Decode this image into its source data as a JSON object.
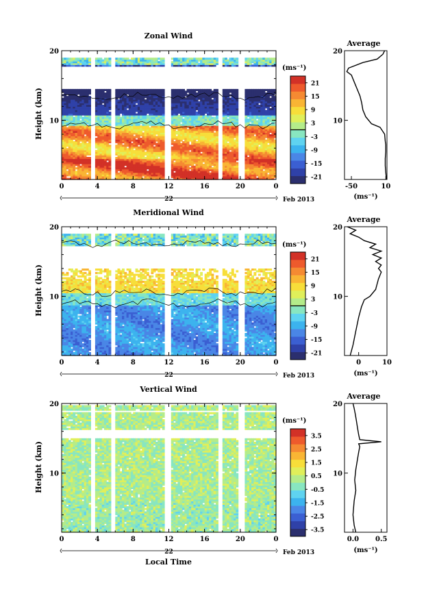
{
  "figure": {
    "date_label": "Feb 2013",
    "day_label": "22",
    "xlabel_bottom": "Local Time"
  },
  "chart_data": [
    {
      "type": "heatmap",
      "title": "Zonal Wind",
      "ylabel": "Height (km)",
      "x_ticks": [
        "0",
        "4",
        "8",
        "12",
        "16",
        "20",
        "0"
      ],
      "x_range": [
        0,
        24
      ],
      "y_ticks": [
        "10",
        "20"
      ],
      "ylim": [
        1.5,
        20
      ],
      "colorbar": {
        "unit": "(ms⁻¹)",
        "ticks": [
          "21",
          "15",
          "9",
          "3",
          "-3",
          "-9",
          "-15",
          "-21"
        ],
        "zero_line": true
      },
      "contour_level": 0,
      "average_profile": {
        "title": "Average",
        "xlabel": "(ms⁻¹)",
        "x_ticks": [
          "-50",
          "10"
        ],
        "xlim": [
          -62,
          12
        ],
        "ylim": [
          1.5,
          20
        ],
        "y_ticks": [
          "10",
          "20"
        ],
        "points": [
          [
            11,
            1.5
          ],
          [
            10,
            2.5
          ],
          [
            9,
            3.5
          ],
          [
            9,
            4.5
          ],
          [
            10,
            5.5
          ],
          [
            10,
            6.5
          ],
          [
            9,
            7
          ],
          [
            8,
            8
          ],
          [
            0,
            9
          ],
          [
            -15,
            9.5
          ],
          [
            -25,
            10.5
          ],
          [
            -30,
            11.5
          ],
          [
            -32,
            12.5
          ],
          [
            -35,
            13.5
          ],
          [
            -40,
            14.5
          ],
          [
            -45,
            15.5
          ],
          [
            -50,
            16.5
          ],
          [
            -58,
            17
          ],
          [
            -55,
            17.5
          ],
          [
            -30,
            18.3
          ],
          [
            -5,
            18.8
          ],
          [
            5,
            19.5
          ],
          [
            8,
            20
          ]
        ]
      }
    },
    {
      "type": "heatmap",
      "title": "Meridional Wind",
      "ylabel": "Height (km)",
      "x_ticks": [
        "0",
        "4",
        "8",
        "12",
        "16",
        "20",
        "0"
      ],
      "x_range": [
        0,
        24
      ],
      "y_ticks": [
        "10",
        "20"
      ],
      "ylim": [
        1.5,
        20
      ],
      "colorbar": {
        "unit": "(ms⁻¹)",
        "ticks": [
          "21",
          "15",
          "9",
          "3",
          "-3",
          "-9",
          "-15",
          "-21"
        ],
        "zero_line": true
      },
      "contour_level": 0,
      "average_profile": {
        "title": "Average",
        "xlabel": "(ms⁻¹)",
        "x_ticks": [
          "0",
          "10"
        ],
        "xlim": [
          -5,
          10
        ],
        "ylim": [
          1.5,
          20
        ],
        "y_ticks": [
          "10",
          "20"
        ],
        "points": [
          [
            -3,
            1.5
          ],
          [
            -2,
            3
          ],
          [
            -1,
            5
          ],
          [
            0,
            7
          ],
          [
            1,
            8.5
          ],
          [
            2,
            9.5
          ],
          [
            4,
            10
          ],
          [
            6,
            11
          ],
          [
            7,
            12.5
          ],
          [
            8,
            13.5
          ],
          [
            7,
            14
          ],
          [
            8,
            14.5
          ],
          [
            6,
            15
          ],
          [
            8,
            15.5
          ],
          [
            5,
            16
          ],
          [
            8,
            16.5
          ],
          [
            4,
            17
          ],
          [
            6,
            17.5
          ],
          [
            2,
            18
          ],
          [
            0,
            18.5
          ],
          [
            -3,
            19
          ],
          [
            -1,
            19.5
          ],
          [
            -4,
            20
          ]
        ]
      }
    },
    {
      "type": "heatmap",
      "title": "Vertical Wind",
      "ylabel": "Height (km)",
      "xlabel": "Local Time",
      "x_ticks": [
        "0",
        "4",
        "8",
        "12",
        "16",
        "20",
        "0"
      ],
      "x_range": [
        0,
        24
      ],
      "y_ticks": [
        "10",
        "20"
      ],
      "ylim": [
        1.5,
        20
      ],
      "colorbar": {
        "unit": "(ms⁻¹)",
        "ticks": [
          "3.5",
          "2.5",
          "1.5",
          "0.5",
          "-0.5",
          "-1.5",
          "-2.5",
          "-3.5"
        ],
        "zero_line": false
      },
      "average_profile": {
        "title": "Average",
        "xlabel": "(ms⁻¹)",
        "x_ticks": [
          "0.0",
          "0.5"
        ],
        "xlim": [
          -0.15,
          0.6
        ],
        "ylim": [
          1.5,
          20
        ],
        "y_ticks": [
          "10",
          "20"
        ],
        "points": [
          [
            0.05,
            1.5
          ],
          [
            0.02,
            2.5
          ],
          [
            0.0,
            4
          ],
          [
            0.02,
            6
          ],
          [
            0.05,
            7.5
          ],
          [
            0.03,
            9
          ],
          [
            0.05,
            10.5
          ],
          [
            0.08,
            12
          ],
          [
            0.1,
            13
          ],
          [
            0.12,
            13.8
          ],
          [
            0.1,
            14.2
          ],
          [
            0.5,
            14.5
          ],
          [
            0.12,
            14.8
          ],
          [
            0.1,
            15.5
          ],
          [
            0.08,
            16.5
          ],
          [
            0.06,
            17.5
          ],
          [
            0.04,
            18.5
          ],
          [
            0.02,
            19.3
          ],
          [
            0.0,
            20
          ]
        ]
      }
    }
  ],
  "colormap": [
    "#2b2f6e",
    "#2f41a8",
    "#3b5fd2",
    "#4a86e6",
    "#3cb3ee",
    "#5fd3f0",
    "#88e6c0",
    "#b4ec8a",
    "#e0ef5a",
    "#f7de3a",
    "#f9b534",
    "#f58a32",
    "#ee5a2c",
    "#d23127"
  ]
}
